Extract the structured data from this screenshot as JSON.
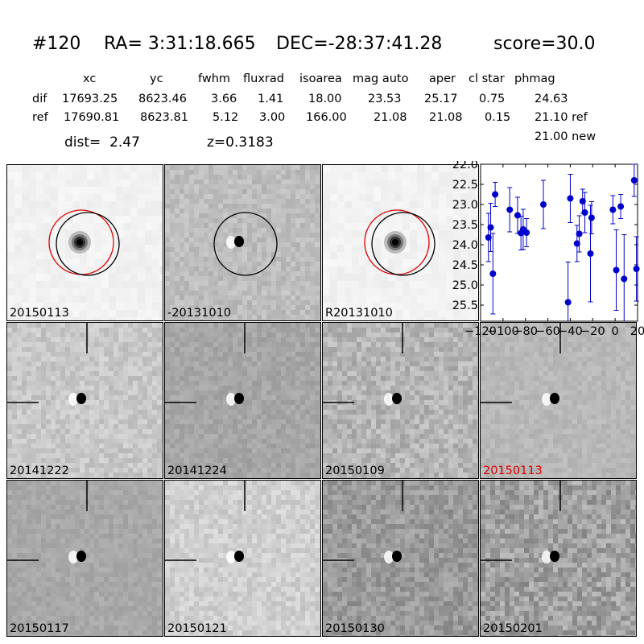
{
  "header": {
    "id": "#120",
    "ra": "RA= 3:31:18.665",
    "dec": "DEC=-28:37:41.28",
    "score": "score=30.0"
  },
  "table": {
    "columns": [
      "xc",
      "yc",
      "fwhm",
      "fluxrad",
      "isoarea",
      "mag auto",
      "aper",
      "cl star",
      "phmag"
    ],
    "rows": [
      {
        "label": "dif",
        "values": [
          "17693.25",
          "8623.46",
          "3.66",
          "1.41",
          "18.00",
          "23.53",
          "25.17",
          "0.75",
          "24.63"
        ]
      },
      {
        "label": "ref",
        "values": [
          "17690.81",
          "8623.81",
          "5.12",
          "3.00",
          "166.00",
          "21.08",
          "21.08",
          "0.15",
          "21.10 ref"
        ]
      }
    ],
    "extra": "21.00 new",
    "dist": "dist=  2.47",
    "z": "z=0.3183"
  },
  "panels": [
    {
      "label": "20150113",
      "type": "stamp",
      "bg": "#f2f2f2",
      "noise": 6,
      "circles": [
        "red",
        "black"
      ],
      "src": "psf"
    },
    {
      "label": "-20131010",
      "type": "stamp",
      "bg": "#bdbdbd",
      "noise": 14,
      "circles": [
        "black"
      ],
      "src": "dipole"
    },
    {
      "label": "R20131010",
      "type": "stamp",
      "bg": "#f2f2f2",
      "noise": 6,
      "circles": [
        "red",
        "black"
      ],
      "src": "psf"
    },
    {
      "label": "20141222",
      "type": "cutout",
      "bg": "#c8c8c8",
      "noise": 16,
      "src": "dipole"
    },
    {
      "label": "20141224",
      "type": "cutout",
      "bg": "#a6a6a6",
      "noise": 12,
      "src": "dipole"
    },
    {
      "label": "20150109",
      "type": "cutout",
      "bg": "#b5b5b5",
      "noise": 22,
      "src": "dipole"
    },
    {
      "label": "20150113",
      "type": "cutout",
      "bg": "#b8b8b8",
      "noise": 10,
      "src": "dipole",
      "highlight": true
    },
    {
      "label": "20150117",
      "type": "cutout",
      "bg": "#a8a8a8",
      "noise": 10,
      "src": "dipole"
    },
    {
      "label": "20150121",
      "type": "cutout",
      "bg": "#d0d0d0",
      "noise": 16,
      "src": "dipole"
    },
    {
      "label": "20150130",
      "type": "cutout",
      "bg": "#9a9a9a",
      "noise": 22,
      "src": "dipole"
    },
    {
      "label": "20150201",
      "type": "cutout",
      "bg": "#a0a0a0",
      "noise": 30,
      "src": "dipole"
    }
  ],
  "colors": {
    "highlight": "#e00000",
    "points": "#0000cc",
    "circle_red": "#e00000"
  },
  "chart_data": {
    "type": "scatter",
    "xlim": [
      -120,
      20
    ],
    "ylim": [
      25.9,
      22.0
    ],
    "y_inverted": true,
    "x_ticks": [
      -120,
      -100,
      -80,
      -60,
      -40,
      -20,
      0,
      20
    ],
    "x_tick_labels": [
      "−120",
      "−100",
      "−80",
      "−60",
      "−40",
      "−20",
      "0",
      "20"
    ],
    "y_ticks": [
      22.0,
      22.5,
      23.0,
      23.5,
      24.0,
      24.5,
      25.0,
      25.5
    ],
    "y_tick_labels": [
      "22.0",
      "22.5",
      "23.0",
      "23.5",
      "24.0",
      "24.5",
      "25.0",
      "25.5"
    ],
    "points": [
      {
        "x": -113,
        "y": 23.82,
        "err": 0.6
      },
      {
        "x": -111,
        "y": 23.57,
        "err": 0.6
      },
      {
        "x": -109,
        "y": 24.72,
        "err": 1.0
      },
      {
        "x": -107,
        "y": 22.75,
        "err": 0.3
      },
      {
        "x": -94,
        "y": 23.13,
        "err": 0.55
      },
      {
        "x": -87,
        "y": 23.27,
        "err": 0.45
      },
      {
        "x": -84,
        "y": 23.71,
        "err": 0.42
      },
      {
        "x": -82,
        "y": 23.62,
        "err": 0.5
      },
      {
        "x": -79,
        "y": 23.7,
        "err": 0.35
      },
      {
        "x": -64,
        "y": 23.0,
        "err": 0.6
      },
      {
        "x": -42,
        "y": 25.43,
        "err": 1.0
      },
      {
        "x": -40,
        "y": 22.85,
        "err": 0.6
      },
      {
        "x": -34,
        "y": 23.97,
        "err": 0.45
      },
      {
        "x": -32,
        "y": 23.73,
        "err": 0.45
      },
      {
        "x": -29,
        "y": 22.92,
        "err": 0.3
      },
      {
        "x": -27,
        "y": 23.2,
        "err": 0.5
      },
      {
        "x": -22,
        "y": 24.22,
        "err": 1.2
      },
      {
        "x": -21,
        "y": 23.33,
        "err": 0.4
      },
      {
        "x": -2,
        "y": 23.13,
        "err": 0.35
      },
      {
        "x": 1,
        "y": 24.63,
        "err": 1.0
      },
      {
        "x": 5,
        "y": 23.05,
        "err": 0.3
      },
      {
        "x": 8,
        "y": 24.85,
        "err": 1.1
      },
      {
        "x": 17,
        "y": 22.4,
        "err": 0.4
      },
      {
        "x": 19,
        "y": 24.6,
        "err": 0.8
      }
    ]
  }
}
